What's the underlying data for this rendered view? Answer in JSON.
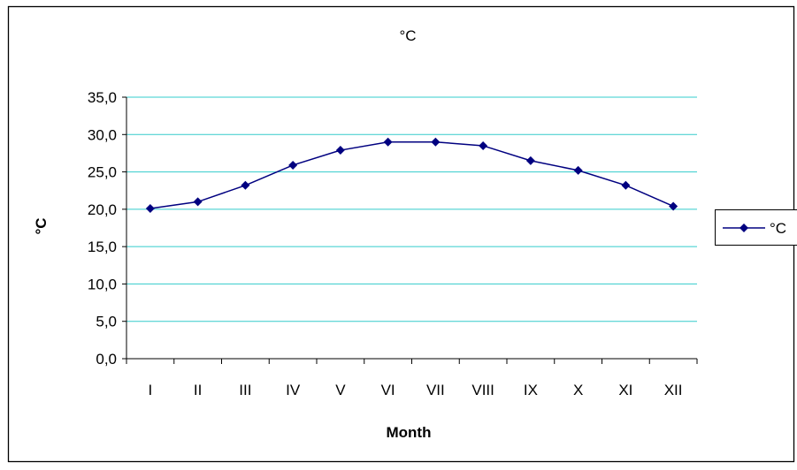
{
  "chart_data": {
    "type": "line",
    "title": "°C",
    "xlabel": "Month",
    "ylabel": "°C",
    "categories": [
      "I",
      "II",
      "III",
      "IV",
      "V",
      "VI",
      "VII",
      "VIII",
      "IX",
      "X",
      "XI",
      "XII"
    ],
    "series": [
      {
        "name": "°C",
        "values": [
          20.1,
          21.0,
          23.2,
          25.9,
          27.9,
          29.0,
          29.0,
          28.5,
          26.5,
          25.2,
          23.2,
          20.4
        ],
        "color": "#000080",
        "marker": "diamond"
      }
    ],
    "ylim": [
      0,
      35
    ],
    "yticks": [
      "0,0",
      "5,0",
      "10,0",
      "15,0",
      "20,0",
      "25,0",
      "30,0",
      "35,0"
    ],
    "grid": true,
    "gridline_color": "#33cccc",
    "legend_position": "right"
  }
}
